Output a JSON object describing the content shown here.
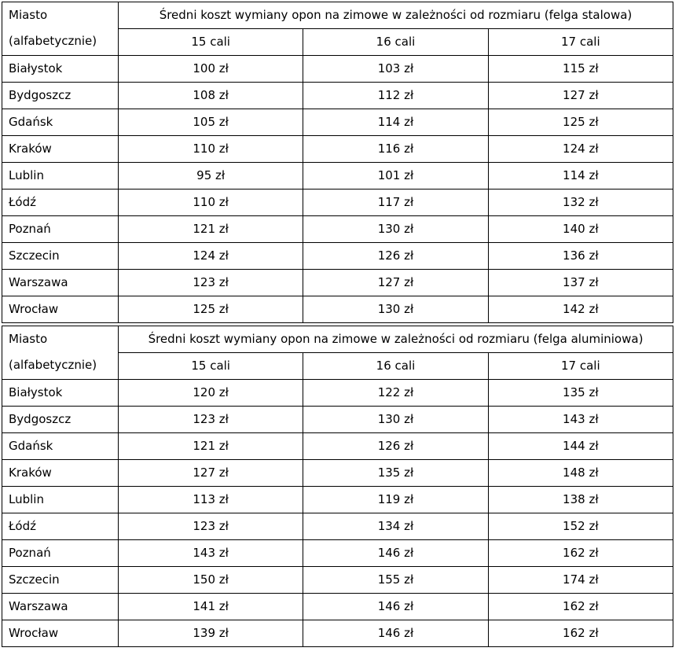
{
  "colors": {
    "background": "#ffffff",
    "border": "#000000",
    "text": "#000000"
  },
  "tables": [
    {
      "id": "steel-rim-table",
      "corner": {
        "line1": "Miasto",
        "line2": "(alfabetycznie)"
      },
      "title": "Średni koszt wymiany opon na zimowe w zależności od rozmiaru (felga stalowa)",
      "size_headers": [
        "15 cali",
        "16 cali",
        "17 cali"
      ],
      "rows": [
        {
          "city": "Białystok",
          "prices": [
            "100 zł",
            "103 zł",
            "115 zł"
          ]
        },
        {
          "city": "Bydgoszcz",
          "prices": [
            "108 zł",
            "112 zł",
            "127 zł"
          ]
        },
        {
          "city": "Gdańsk",
          "prices": [
            "105 zł",
            "114 zł",
            "125 zł"
          ]
        },
        {
          "city": "Kraków",
          "prices": [
            "110 zł",
            "116 zł",
            "124 zł"
          ]
        },
        {
          "city": "Lublin",
          "prices": [
            "95 zł",
            "101 zł",
            "114 zł"
          ]
        },
        {
          "city": "Łódź",
          "prices": [
            "110 zł",
            "117 zł",
            "132 zł"
          ]
        },
        {
          "city": "Poznań",
          "prices": [
            "121 zł",
            "130 zł",
            "140 zł"
          ]
        },
        {
          "city": "Szczecin",
          "prices": [
            "124 zł",
            "126 zł",
            "136 zł"
          ]
        },
        {
          "city": "Warszawa",
          "prices": [
            "123 zł",
            "127 zł",
            "137 zł"
          ]
        },
        {
          "city": "Wrocław",
          "prices": [
            "125 zł",
            "130 zł",
            "142 zł"
          ]
        }
      ]
    },
    {
      "id": "aluminum-rim-table",
      "corner": {
        "line1": "Miasto",
        "line2": "(alfabetycznie)"
      },
      "title": "Średni koszt wymiany opon na zimowe w zależności od rozmiaru (felga aluminiowa)",
      "size_headers": [
        "15 cali",
        "16 cali",
        "17 cali"
      ],
      "rows": [
        {
          "city": "Białystok",
          "prices": [
            "120 zł",
            "122 zł",
            "135 zł"
          ]
        },
        {
          "city": "Bydgoszcz",
          "prices": [
            "123 zł",
            "130 zł",
            "143 zł"
          ]
        },
        {
          "city": "Gdańsk",
          "prices": [
            "121 zł",
            "126 zł",
            "144 zł"
          ]
        },
        {
          "city": "Kraków",
          "prices": [
            "127 zł",
            "135 zł",
            "148 zł"
          ]
        },
        {
          "city": "Lublin",
          "prices": [
            "113 zł",
            "119 zł",
            "138 zł"
          ]
        },
        {
          "city": "Łódź",
          "prices": [
            "123 zł",
            "134 zł",
            "152 zł"
          ]
        },
        {
          "city": "Poznań",
          "prices": [
            "143 zł",
            "146 zł",
            "162 zł"
          ]
        },
        {
          "city": "Szczecin",
          "prices": [
            "150 zł",
            "155 zł",
            "174 zł"
          ]
        },
        {
          "city": "Warszawa",
          "prices": [
            "141 zł",
            "146 zł",
            "162 zł"
          ]
        },
        {
          "city": "Wrocław",
          "prices": [
            "139 zł",
            "146 zł",
            "162 zł"
          ]
        }
      ]
    }
  ]
}
